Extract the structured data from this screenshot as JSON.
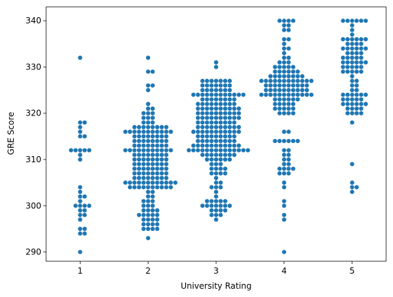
{
  "chart_data": {
    "type": "scatter",
    "subtype": "swarm",
    "title": "",
    "xlabel": "University Rating",
    "ylabel": "GRE Score",
    "categories": [
      "1",
      "2",
      "3",
      "4",
      "5"
    ],
    "yticks": [
      290,
      300,
      310,
      320,
      330,
      340
    ],
    "ylim": [
      288,
      343
    ],
    "grid": false,
    "legend": "none",
    "point_color": "#1f77b4",
    "series": [
      {
        "category": "1",
        "values": [
          290,
          294,
          294,
          295,
          295,
          297,
          298,
          298,
          299,
          299,
          300,
          300,
          300,
          300,
          301,
          302,
          302,
          303,
          304,
          310,
          311,
          312,
          312,
          312,
          312,
          312,
          315,
          315,
          316,
          317,
          318,
          318,
          332
        ]
      },
      {
        "category": "2",
        "values": [
          293,
          295,
          295,
          295,
          295,
          296,
          296,
          296,
          296,
          297,
          297,
          297,
          297,
          298,
          298,
          298,
          298,
          298,
          299,
          299,
          299,
          299,
          300,
          300,
          300,
          301,
          301,
          301,
          302,
          302,
          303,
          303,
          304,
          304,
          304,
          304,
          304,
          304,
          304,
          304,
          304,
          304,
          305,
          305,
          305,
          305,
          305,
          305,
          305,
          305,
          305,
          305,
          305,
          305,
          306,
          306,
          306,
          306,
          306,
          306,
          306,
          306,
          307,
          307,
          307,
          307,
          307,
          307,
          307,
          307,
          308,
          308,
          308,
          308,
          308,
          308,
          308,
          308,
          309,
          309,
          309,
          309,
          309,
          309,
          309,
          309,
          310,
          310,
          310,
          310,
          310,
          310,
          310,
          310,
          311,
          311,
          311,
          311,
          311,
          311,
          311,
          311,
          312,
          312,
          312,
          312,
          312,
          312,
          312,
          312,
          312,
          312,
          312,
          313,
          313,
          313,
          313,
          313,
          313,
          313,
          313,
          314,
          314,
          314,
          314,
          314,
          314,
          314,
          314,
          315,
          315,
          315,
          315,
          315,
          315,
          315,
          315,
          316,
          316,
          316,
          316,
          316,
          316,
          316,
          316,
          316,
          316,
          316,
          317,
          317,
          317,
          317,
          317,
          317,
          317,
          317,
          318,
          318,
          318,
          319,
          319,
          319,
          320,
          320,
          320,
          321,
          321,
          322,
          325,
          326,
          326,
          329,
          329,
          332
        ]
      },
      {
        "category": "3",
        "values": [
          297,
          298,
          298,
          298,
          299,
          299,
          299,
          299,
          300,
          300,
          300,
          300,
          300,
          300,
          300,
          301,
          301,
          301,
          301,
          301,
          302,
          303,
          304,
          304,
          304,
          305,
          305,
          306,
          307,
          307,
          307,
          307,
          308,
          308,
          308,
          308,
          309,
          309,
          309,
          310,
          310,
          310,
          310,
          310,
          310,
          311,
          311,
          311,
          311,
          311,
          311,
          311,
          311,
          312,
          312,
          312,
          312,
          312,
          312,
          312,
          312,
          312,
          312,
          312,
          312,
          312,
          312,
          313,
          313,
          313,
          313,
          313,
          313,
          313,
          313,
          313,
          313,
          313,
          314,
          314,
          314,
          314,
          314,
          314,
          314,
          314,
          314,
          315,
          315,
          315,
          315,
          315,
          315,
          315,
          315,
          315,
          316,
          316,
          316,
          316,
          316,
          316,
          316,
          316,
          316,
          316,
          316,
          317,
          317,
          317,
          317,
          317,
          317,
          317,
          317,
          317,
          317,
          318,
          318,
          318,
          318,
          318,
          318,
          318,
          318,
          318,
          319,
          319,
          319,
          319,
          319,
          319,
          319,
          319,
          319,
          319,
          320,
          320,
          320,
          320,
          320,
          320,
          320,
          320,
          320,
          320,
          321,
          321,
          321,
          321,
          321,
          321,
          321,
          321,
          321,
          321,
          322,
          322,
          322,
          322,
          322,
          322,
          322,
          322,
          322,
          323,
          323,
          323,
          323,
          323,
          323,
          323,
          323,
          324,
          324,
          324,
          324,
          324,
          324,
          324,
          324,
          324,
          324,
          324,
          324,
          325,
          325,
          325,
          325,
          325,
          325,
          325,
          326,
          326,
          326,
          326,
          326,
          326,
          326,
          327,
          327,
          327,
          327,
          327,
          327,
          327,
          330,
          331
        ]
      },
      {
        "category": "4",
        "values": [
          290,
          297,
          298,
          300,
          301,
          304,
          305,
          307,
          307,
          307,
          308,
          308,
          308,
          308,
          309,
          309,
          310,
          310,
          311,
          311,
          312,
          312,
          314,
          314,
          314,
          314,
          314,
          314,
          316,
          316,
          320,
          320,
          320,
          320,
          321,
          321,
          321,
          321,
          321,
          322,
          322,
          322,
          322,
          322,
          323,
          323,
          323,
          323,
          323,
          323,
          324,
          324,
          324,
          324,
          324,
          324,
          324,
          324,
          324,
          324,
          324,
          324,
          325,
          325,
          325,
          325,
          325,
          325,
          325,
          325,
          325,
          325,
          326,
          326,
          326,
          326,
          326,
          326,
          326,
          326,
          326,
          326,
          327,
          327,
          327,
          327,
          327,
          327,
          327,
          327,
          327,
          327,
          327,
          327,
          328,
          328,
          328,
          328,
          328,
          328,
          328,
          328,
          329,
          329,
          329,
          329,
          329,
          329,
          330,
          330,
          330,
          330,
          330,
          331,
          331,
          331,
          332,
          332,
          333,
          334,
          334,
          335,
          336,
          336,
          338,
          338,
          339,
          339,
          340,
          340,
          340,
          340
        ]
      },
      {
        "category": "5",
        "values": [
          303,
          304,
          304,
          305,
          309,
          318,
          320,
          320,
          320,
          320,
          321,
          321,
          321,
          321,
          322,
          322,
          322,
          322,
          322,
          322,
          323,
          323,
          323,
          323,
          323,
          324,
          324,
          324,
          324,
          324,
          324,
          325,
          325,
          326,
          326,
          327,
          327,
          328,
          329,
          329,
          329,
          329,
          329,
          330,
          330,
          330,
          330,
          330,
          331,
          331,
          331,
          331,
          331,
          331,
          332,
          332,
          332,
          332,
          332,
          333,
          333,
          333,
          333,
          334,
          334,
          334,
          334,
          334,
          334,
          335,
          335,
          335,
          335,
          336,
          336,
          336,
          336,
          336,
          336,
          337,
          338,
          339,
          340,
          340,
          340,
          340,
          340,
          340
        ]
      }
    ]
  }
}
